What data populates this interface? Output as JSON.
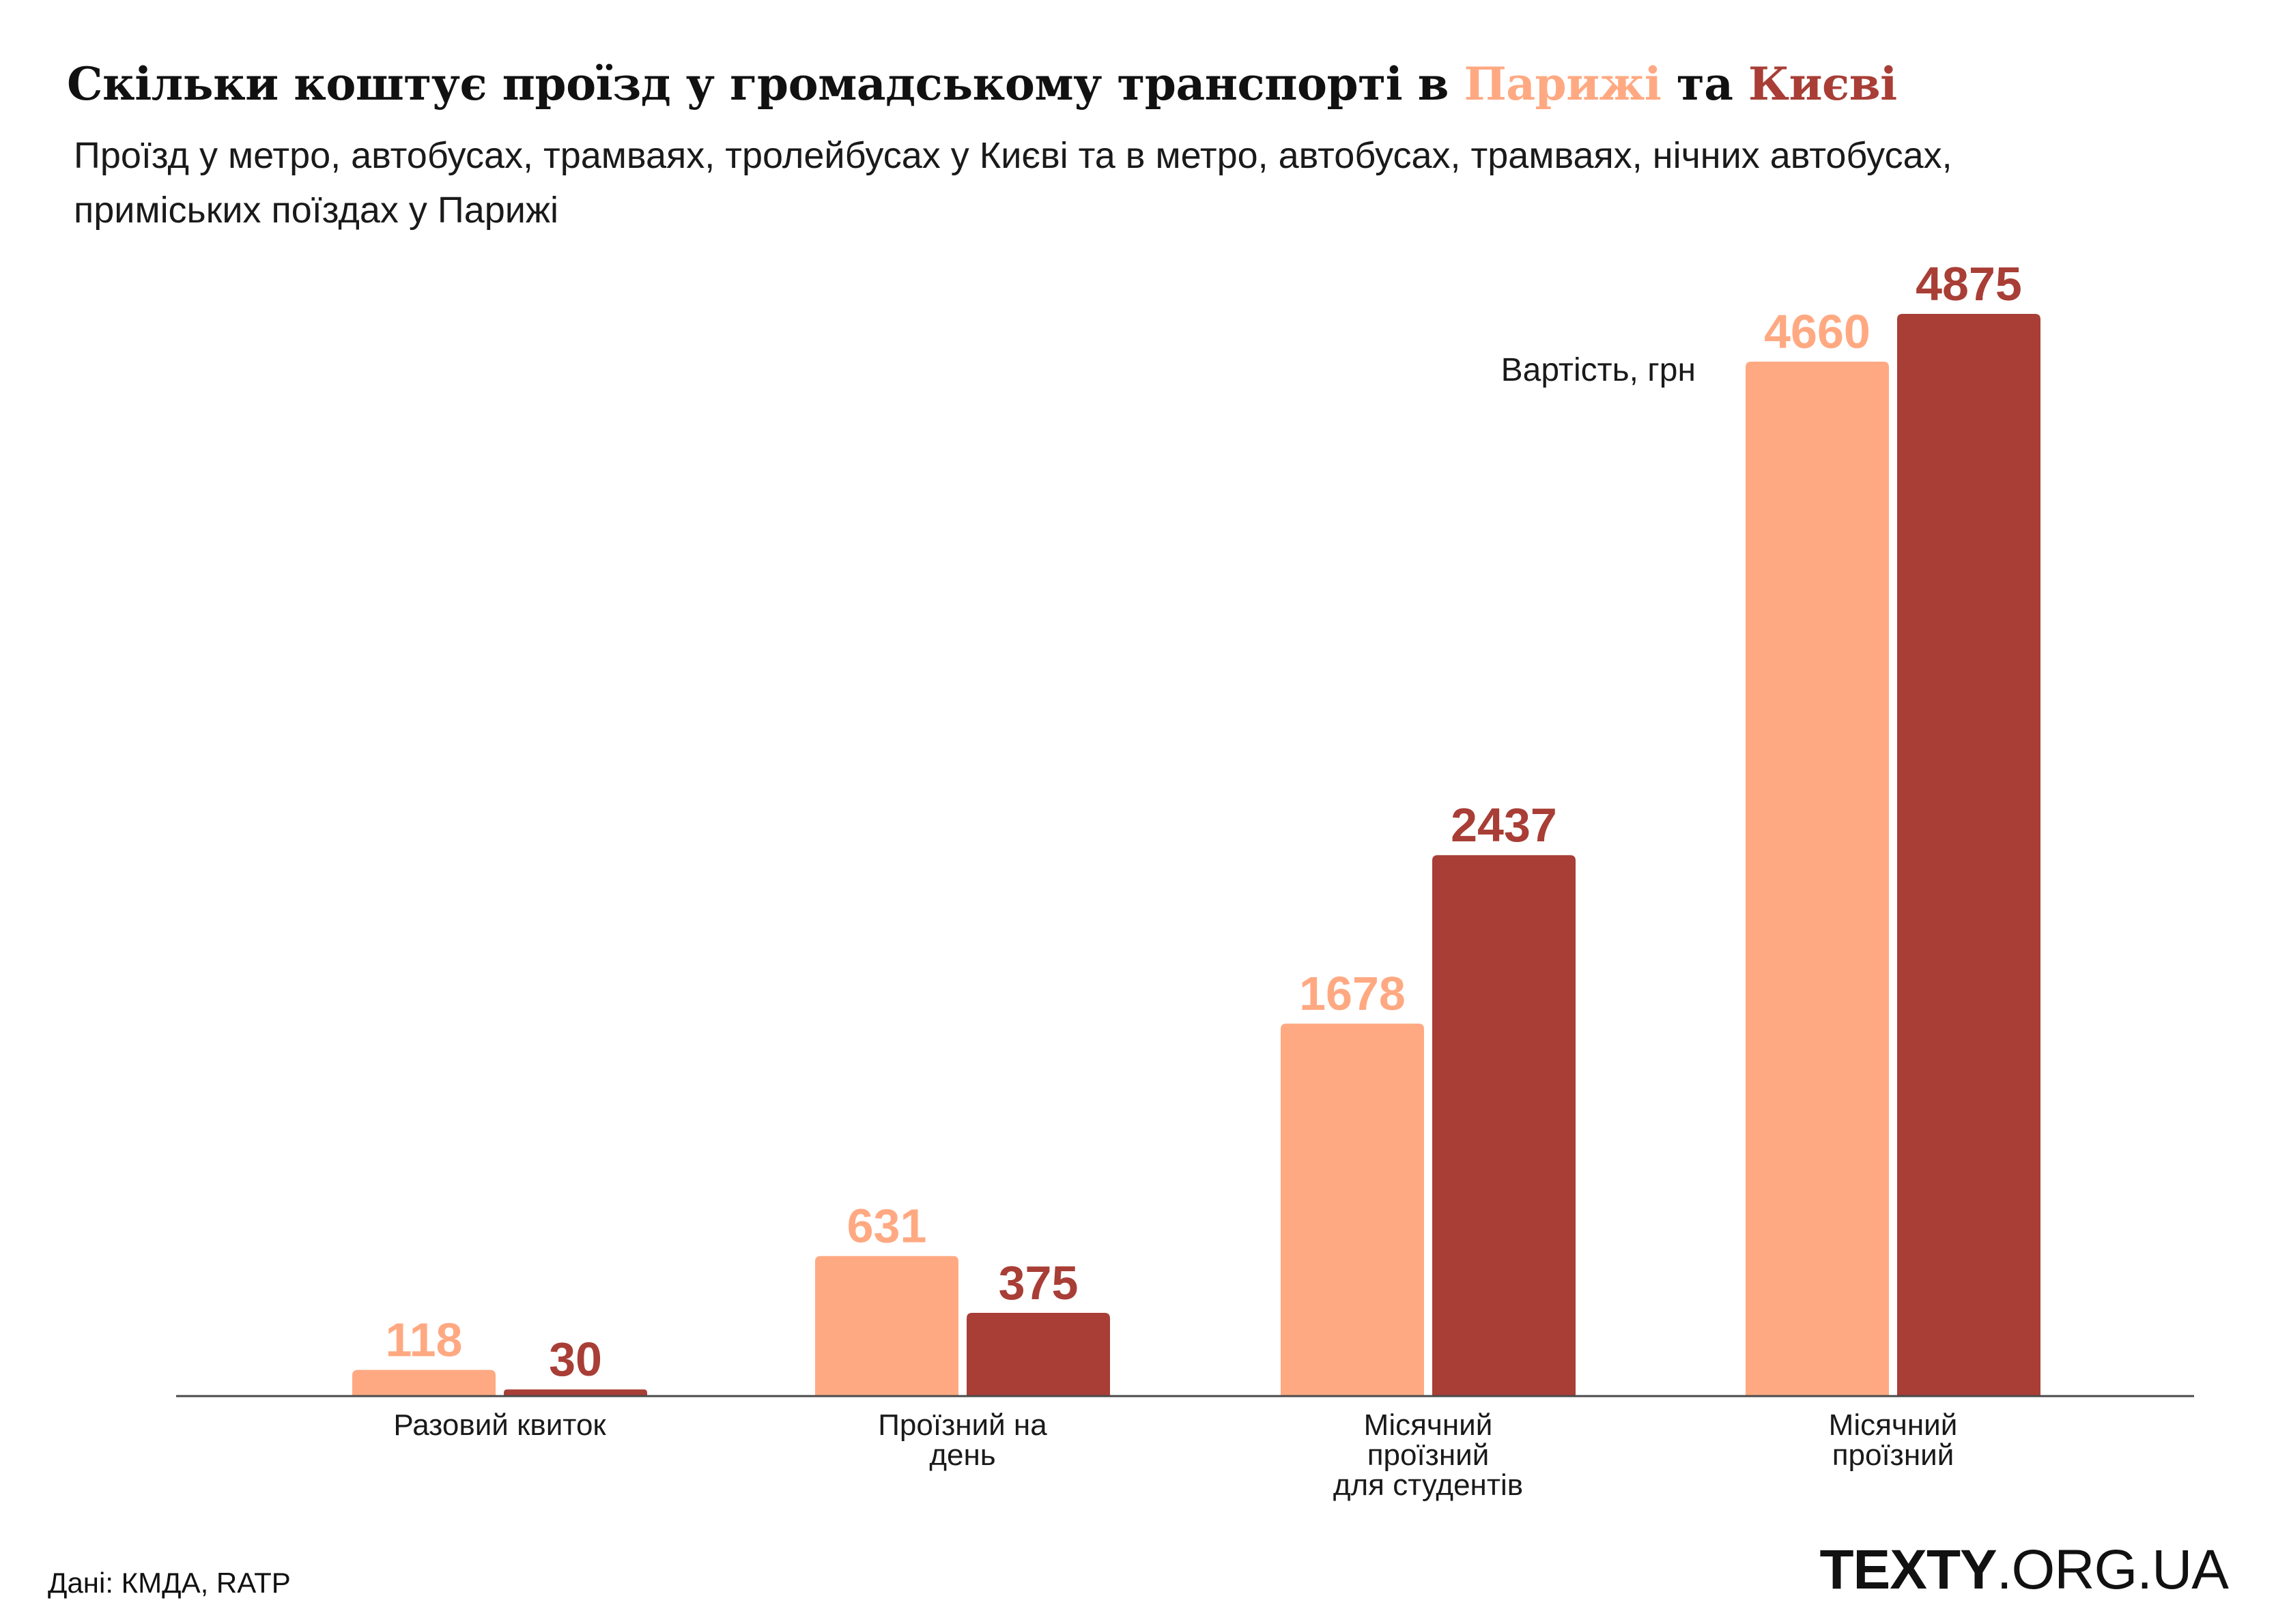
{
  "header": {
    "title_prefix": "Скільки коштує проїзд у громадському транспорті в",
    "title_paris": "Парижі",
    "title_mid": "та",
    "title_kyiv": "Києві",
    "subtitle": "Проїзд у метро, автобусах, трамваях, тролейбусах у Києві та в метро, автобусах, трамваях, нічних автобусах, приміських поїздах у Парижі"
  },
  "colors": {
    "paris": "#FFA982",
    "kyiv": "#A83E36",
    "axis": "#4a4a4a",
    "text": "#1a1a1a"
  },
  "chart_data": {
    "type": "bar",
    "ylabel": "Вартість, грн",
    "categories": [
      [
        "Разовий квиток"
      ],
      [
        "Проїзний на",
        "день"
      ],
      [
        "Місячний",
        "проїзний",
        "для студентів"
      ],
      [
        "Місячний",
        "проїзний"
      ]
    ],
    "series": [
      {
        "values": [
          118,
          631,
          1678,
          4660
        ]
      },
      {
        "values": [
          30,
          375,
          2437,
          4875
        ]
      }
    ],
    "ylim": [
      0,
      5000
    ],
    "grid": false,
    "legend": "none"
  },
  "footer": {
    "source": "Дані: КМДА, RATP",
    "logo_bold": "TEXTY",
    "logo_rest": ".ORG.UA"
  }
}
